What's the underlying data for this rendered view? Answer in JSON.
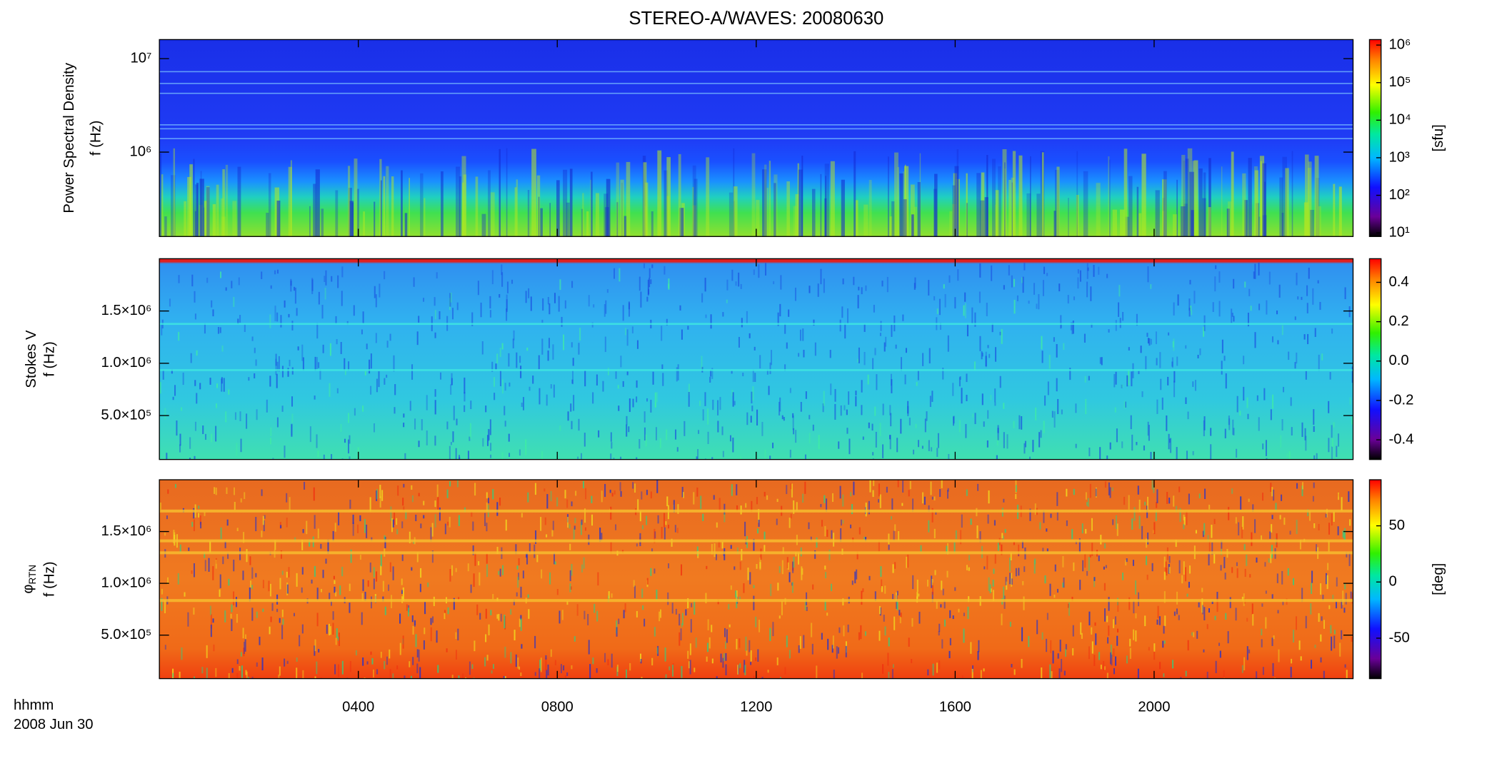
{
  "title": "STEREO-A/WAVES: 20080630",
  "x_axis": {
    "xlim": [
      0,
      24
    ],
    "xticks": [
      {
        "value": 4,
        "label": "0400"
      },
      {
        "value": 8,
        "label": "0800"
      },
      {
        "value": 12,
        "label": "1200"
      },
      {
        "value": 16,
        "label": "1600"
      },
      {
        "value": 20,
        "label": "2000"
      }
    ],
    "label": "hhmm",
    "date": "2008 Jun 30"
  },
  "chart_data": [
    {
      "type": "heatmap",
      "ylabel": [
        "Power Spectral Density",
        "f (Hz)"
      ],
      "ylim": [
        125000,
        16000000
      ],
      "ylog": true,
      "yticks": [
        {
          "value": 1000000,
          "label": "10⁶"
        },
        {
          "value": 10000000,
          "label": "10⁷"
        }
      ],
      "colorbar": {
        "zlim": [
          8,
          1400000
        ],
        "log": true,
        "label": "[sfu]",
        "ticks": [
          {
            "value": 10,
            "label": "10¹"
          },
          {
            "value": 100,
            "label": "10²"
          },
          {
            "value": 1000,
            "label": "10³"
          },
          {
            "value": 10000,
            "label": "10⁴"
          },
          {
            "value": 100000,
            "label": "10⁵"
          },
          {
            "value": 1000000,
            "label": "10⁶"
          }
        ]
      }
    },
    {
      "type": "heatmap",
      "ylabel": [
        "Stokes V",
        "f (Hz)"
      ],
      "ylim": [
        80000,
        2000000
      ],
      "ylog": false,
      "yticks": [
        {
          "value": 500000,
          "label": "5.0×10⁵"
        },
        {
          "value": 1000000,
          "label": "1.0×10⁶"
        },
        {
          "value": 1500000,
          "label": "1.5×10⁶"
        }
      ],
      "colorbar": {
        "zlim": [
          -0.5,
          0.52
        ],
        "log": false,
        "ticks": [
          -0.4,
          -0.2,
          {
            "value": 0,
            "label": "0.0"
          },
          0.2,
          0.4
        ]
      }
    },
    {
      "type": "heatmap",
      "ylabel": [
        "φ",
        "RTN",
        "f (Hz)"
      ],
      "ylim": [
        80000,
        2000000
      ],
      "ylog": false,
      "yticks": [
        {
          "value": 500000,
          "label": "5.0×10⁵"
        },
        {
          "value": 1000000,
          "label": "1.0×10⁶"
        },
        {
          "value": 1500000,
          "label": "1.5×10⁶"
        }
      ],
      "colorbar": {
        "zlim": [
          -86,
          91
        ],
        "log": false,
        "label": "[deg]",
        "ticks": [
          -50,
          0,
          50
        ]
      }
    }
  ]
}
